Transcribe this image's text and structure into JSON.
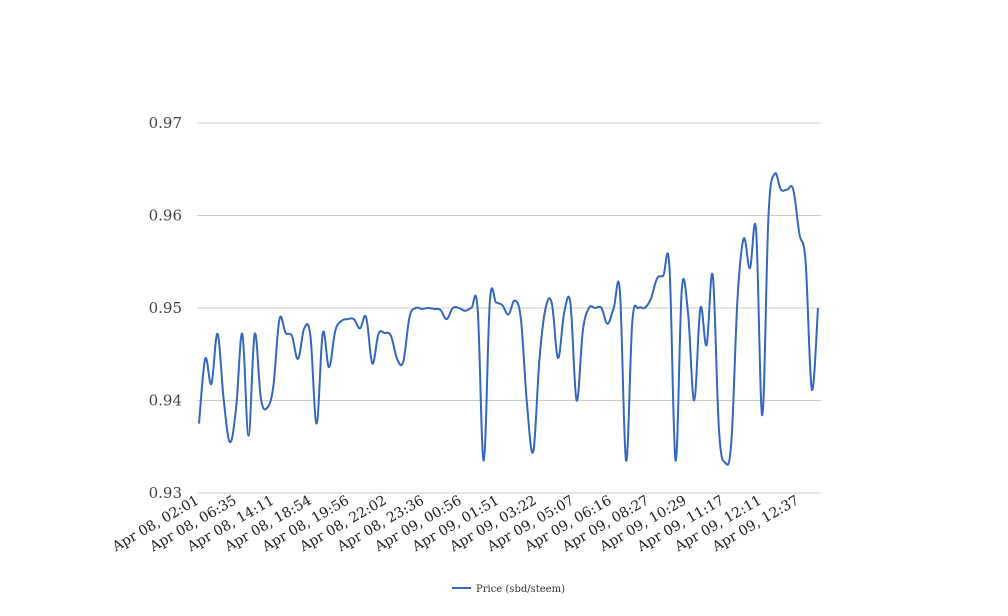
{
  "chart_data": {
    "type": "line",
    "title": "",
    "xlabel": "",
    "ylabel": "",
    "ylim": [
      0.93,
      0.97
    ],
    "yticks": [
      "0.93",
      "0.94",
      "0.95",
      "0.96",
      "0.97"
    ],
    "grid": true,
    "legend_position": "bottom",
    "x_tick_labels": [
      "Apr 08, 02:01",
      "Apr 08, 06:35",
      "Apr 08, 14:11",
      "Apr 08, 18:54",
      "Apr 08, 19:56",
      "Apr 08, 22:02",
      "Apr 08, 23:36",
      "Apr 09, 00:56",
      "Apr 09, 01:51",
      "Apr 09, 03:22",
      "Apr 09, 05:07",
      "Apr 09, 06:16",
      "Apr 09, 08:27",
      "Apr 09, 10:29",
      "Apr 09, 11:17",
      "Apr 09, 12:11",
      "Apr 09, 12:37"
    ],
    "series": [
      {
        "name": "Price (sbd/steem)",
        "color": "#3567c0",
        "values": [
          0.9375,
          0.9445,
          0.9418,
          0.9472,
          0.94,
          0.9355,
          0.9392,
          0.9472,
          0.9362,
          0.9472,
          0.9402,
          0.9392,
          0.9415,
          0.9488,
          0.9473,
          0.947,
          0.9445,
          0.9478,
          0.947,
          0.9375,
          0.9473,
          0.9436,
          0.9475,
          0.9486,
          0.9488,
          0.9488,
          0.9478,
          0.949,
          0.944,
          0.9472,
          0.9473,
          0.947,
          0.9445,
          0.9442,
          0.949,
          0.95,
          0.9499,
          0.95,
          0.9499,
          0.9498,
          0.9488,
          0.95,
          0.95,
          0.9497,
          0.95,
          0.95,
          0.9335,
          0.9508,
          0.9506,
          0.9503,
          0.9493,
          0.9508,
          0.9488,
          0.9395,
          0.9345,
          0.9445,
          0.95,
          0.9505,
          0.9446,
          0.9495,
          0.9505,
          0.94,
          0.9475,
          0.95,
          0.95,
          0.95,
          0.9483,
          0.95,
          0.9518,
          0.9335,
          0.9485,
          0.95,
          0.95,
          0.951,
          0.9532,
          0.9535,
          0.9545,
          0.9335,
          0.952,
          0.9495,
          0.94,
          0.95,
          0.946,
          0.9535,
          0.9368,
          0.9333,
          0.9355,
          0.951,
          0.9575,
          0.9543,
          0.9584,
          0.9384,
          0.96,
          0.9645,
          0.9628,
          0.9628,
          0.9628,
          0.958,
          0.955,
          0.9412,
          0.95
        ]
      }
    ]
  }
}
